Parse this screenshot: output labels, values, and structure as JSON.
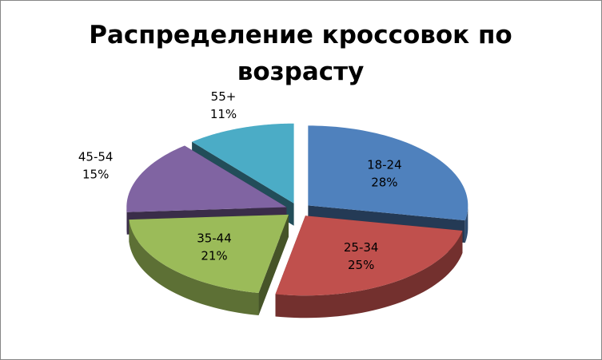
{
  "chart_data": {
    "type": "pie",
    "title": "Распределение кроссовок по возрасту",
    "categories": [
      "18-24",
      "25-34",
      "35-44",
      "45-54",
      "55+"
    ],
    "values": [
      28,
      25,
      21,
      15,
      11
    ],
    "value_labels": [
      "28%",
      "25%",
      "21%",
      "15%",
      "11%"
    ],
    "colors": [
      "#4f81bd",
      "#c0504d",
      "#9bbb59",
      "#8064a2",
      "#4bacc6"
    ]
  }
}
